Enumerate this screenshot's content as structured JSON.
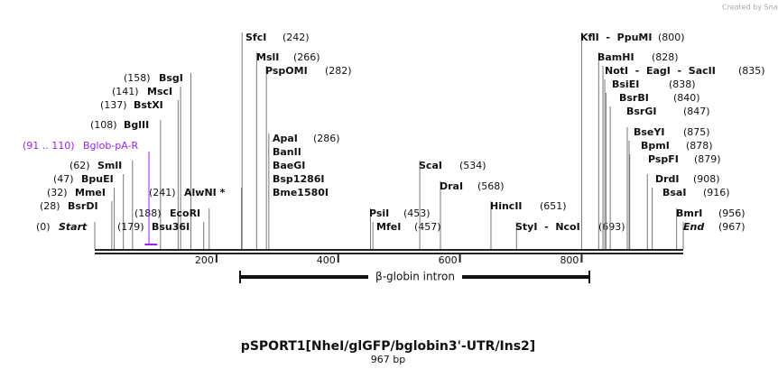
{
  "credit": "Created by SnapGene",
  "title": "pSPORT1[NheI/glGFP/bglobin3'-UTR/Ins2]",
  "length": "967 bp",
  "enzymes": [
    {
      "name": "Start",
      "position": "(0)"
    },
    {
      "name": "BsrDI",
      "position": "(28)"
    },
    {
      "name": "MmeI",
      "position": "(32)"
    },
    {
      "name": "BpuEI",
      "position": "(47)"
    },
    {
      "name": "SmlI",
      "position": "(62)"
    },
    {
      "name": "BglII",
      "position": "(108)"
    },
    {
      "name": "BstXI",
      "position": "(137)"
    },
    {
      "name": "MscI",
      "position": "(141)"
    },
    {
      "name": "BsgI",
      "position": "(158)"
    },
    {
      "name": "Bsu36I",
      "position": "(179)"
    },
    {
      "name": "EcoRI",
      "position": "(188)"
    },
    {
      "name": "AlwNI *",
      "position": "(241)"
    },
    {
      "name": "SfcI",
      "position": "(242)"
    },
    {
      "name": "MslI",
      "position": "(266)"
    },
    {
      "name": "PspOMI",
      "position": "(282)"
    },
    {
      "name": "ApaI",
      "position": "(286)"
    },
    {
      "name": "BanII"
    },
    {
      "name": "BaeGI"
    },
    {
      "name": "Bsp1286I"
    },
    {
      "name": "Bme1580I"
    },
    {
      "name": "PsiI",
      "position": "(453)"
    },
    {
      "name": "MfeI",
      "position": "(457)"
    },
    {
      "name": "ScaI",
      "position": "(534)"
    },
    {
      "name": "DraI",
      "position": "(568)"
    },
    {
      "name": "HincII",
      "position": "(651)"
    },
    {
      "name": "StyI  -  NcoI",
      "position": "(693)"
    },
    {
      "name": "KflI  -  PpuMI",
      "position": "(800)"
    },
    {
      "name": "BamHI",
      "position": "(828)"
    },
    {
      "name": "NotI  -  EagI  -  SacII",
      "position": "(835)"
    },
    {
      "name": "BsiEI",
      "position": "(838)"
    },
    {
      "name": "BsrBI",
      "position": "(840)"
    },
    {
      "name": "BsrGI",
      "position": "(847)"
    },
    {
      "name": "BseYI",
      "position": "(875)"
    },
    {
      "name": "BpmI",
      "position": "(878)"
    },
    {
      "name": "PspFI",
      "position": "(879)"
    },
    {
      "name": "DrdI",
      "position": "(908)"
    },
    {
      "name": "BsaI",
      "position": "(916)"
    },
    {
      "name": "BmrI",
      "position": "(956)"
    },
    {
      "name": "End",
      "position": "(967)"
    }
  ],
  "feature": {
    "name": "Bglob-pA-R",
    "position": "(91 .. 110)"
  },
  "scale_ticks": [
    "200",
    "400",
    "600",
    "800"
  ],
  "intron": "β-globin intron"
}
